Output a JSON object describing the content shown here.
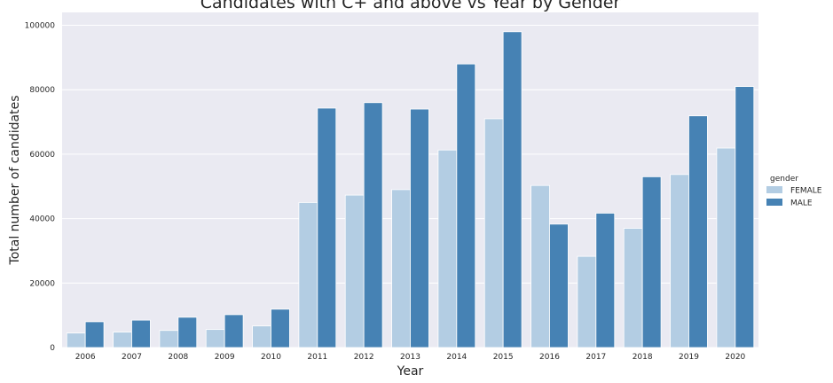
{
  "chart_data": {
    "type": "bar",
    "title": "Candidates with C+ and above vs Year by Gender",
    "xlabel": "Year",
    "ylabel": "Total number of candidates",
    "categories": [
      "2006",
      "2007",
      "2008",
      "2009",
      "2010",
      "2011",
      "2012",
      "2013",
      "2014",
      "2015",
      "2016",
      "2017",
      "2018",
      "2019",
      "2020"
    ],
    "series": [
      {
        "name": "FEMALE",
        "color": "#b3cde3",
        "values": [
          4500,
          4800,
          5300,
          5600,
          6700,
          45000,
          47300,
          49000,
          61300,
          71000,
          50300,
          28300,
          37000,
          53700,
          61900
        ]
      },
      {
        "name": "MALE",
        "color": "#4682b4",
        "values": [
          8000,
          8500,
          9400,
          10200,
          11900,
          74300,
          76000,
          74000,
          88000,
          98000,
          38300,
          41700,
          53000,
          71900,
          81000
        ]
      }
    ],
    "ylim": [
      0,
      104000
    ],
    "yticks": [
      0,
      20000,
      40000,
      60000,
      80000,
      100000
    ],
    "grid": true,
    "legend": {
      "title": "gender",
      "placement": "right"
    },
    "background": "#eaeaf2"
  }
}
